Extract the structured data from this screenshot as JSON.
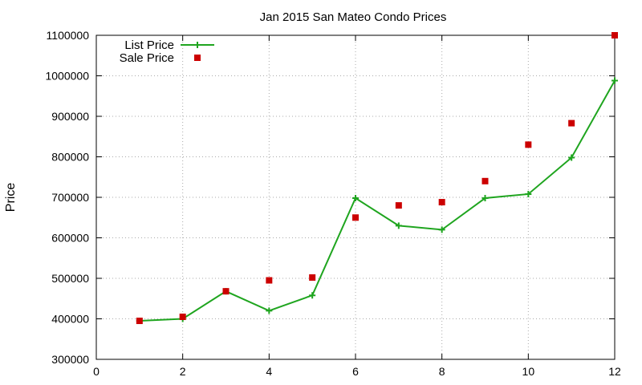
{
  "chart_data": {
    "type": "line",
    "title": "Jan 2015 San Mateo Condo Prices",
    "xlabel": "",
    "ylabel": "Price",
    "xlim": [
      0,
      12
    ],
    "ylim": [
      300000,
      1100000
    ],
    "xticks": [
      0,
      2,
      4,
      6,
      8,
      10,
      12
    ],
    "yticks": [
      300000,
      400000,
      500000,
      600000,
      700000,
      800000,
      900000,
      1000000,
      1100000
    ],
    "grid": true,
    "legend_position": "top-left",
    "series": [
      {
        "name": "List Price",
        "style": "line-with-plus-markers",
        "color": "#1fa51f",
        "x": [
          1,
          2,
          3,
          4,
          5,
          6,
          7,
          8,
          9,
          10,
          11,
          12
        ],
        "y": [
          395000,
          400000,
          468000,
          420000,
          458000,
          698000,
          630000,
          620000,
          698000,
          708000,
          798000,
          988000
        ]
      },
      {
        "name": "Sale Price",
        "style": "square-markers",
        "color": "#cc0000",
        "x": [
          1,
          2,
          3,
          4,
          5,
          6,
          7,
          8,
          9,
          10,
          11,
          12
        ],
        "y": [
          395000,
          405000,
          468000,
          495000,
          502000,
          650000,
          680000,
          688000,
          740000,
          830000,
          883000,
          1100000
        ]
      }
    ]
  }
}
